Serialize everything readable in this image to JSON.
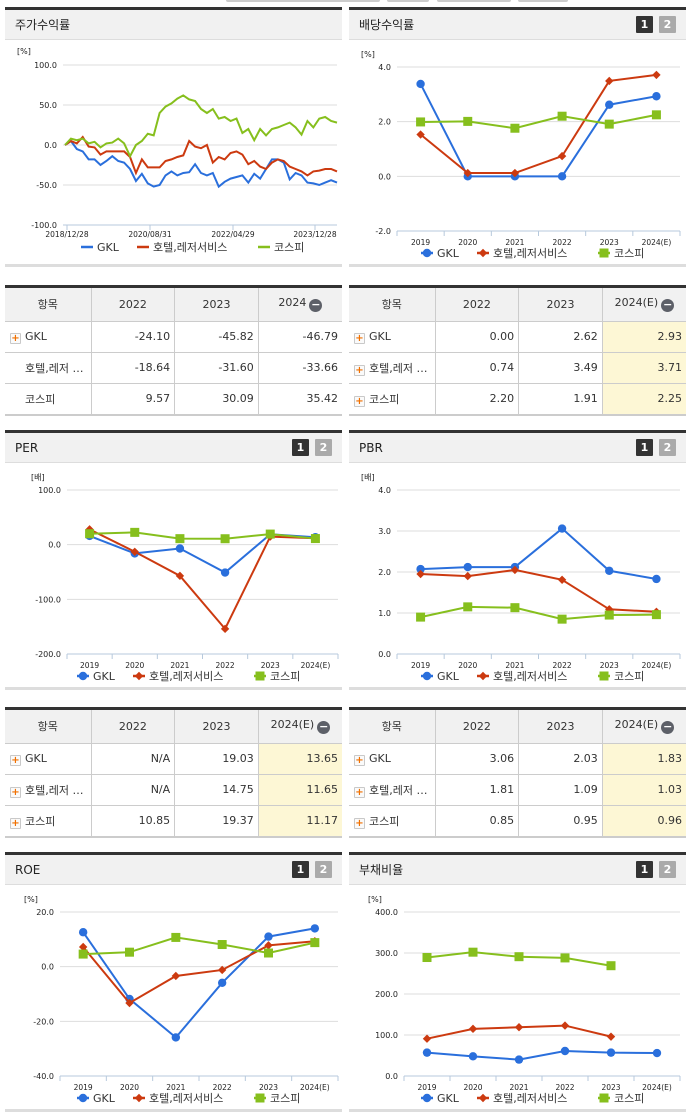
{
  "colors": {
    "gkl": "#2a6fdc",
    "industry": "#cc3a10",
    "kospi": "#86bf1d",
    "grid": "#dddddd",
    "estimate_bg": "#fdf7d5"
  },
  "legend": {
    "gkl": "GKL",
    "industry": "호텔,레저서비스",
    "kospi": "코스피"
  },
  "pager": {
    "p1": "1",
    "p2": "2"
  },
  "panels": {
    "stock_return": {
      "title": "주가수익률",
      "unit": "[%]"
    },
    "dividend": {
      "title": "배당수익률",
      "unit": "[%]"
    },
    "per": {
      "title": "PER",
      "unit": "[배]"
    },
    "pbr": {
      "title": "PBR",
      "unit": "[배]"
    },
    "roe": {
      "title": "ROE",
      "unit": "[%]"
    },
    "debt": {
      "title": "부채비율",
      "unit": "[%]"
    }
  },
  "tables": {
    "stock_return": {
      "headers": [
        "항목",
        "2022",
        "2023",
        "2024"
      ],
      "rows": [
        {
          "name": "GKL",
          "values": [
            "-24.10",
            "-45.82",
            "-46.79"
          ]
        },
        {
          "name": "호텔,레저 …",
          "values": [
            "-18.64",
            "-31.60",
            "-33.66"
          ]
        },
        {
          "name": "코스피",
          "values": [
            "9.57",
            "30.09",
            "35.42"
          ]
        }
      ]
    },
    "dividend": {
      "headers": [
        "항목",
        "2022",
        "2023",
        "2024(E)"
      ],
      "rows": [
        {
          "name": "GKL",
          "values": [
            "0.00",
            "2.62",
            "2.93"
          ]
        },
        {
          "name": "호텔,레저 …",
          "values": [
            "0.74",
            "3.49",
            "3.71"
          ]
        },
        {
          "name": "코스피",
          "values": [
            "2.20",
            "1.91",
            "2.25"
          ]
        }
      ]
    },
    "per": {
      "headers": [
        "항목",
        "2022",
        "2023",
        "2024(E)"
      ],
      "rows": [
        {
          "name": "GKL",
          "values": [
            "N/A",
            "19.03",
            "13.65"
          ]
        },
        {
          "name": "호텔,레저 …",
          "values": [
            "N/A",
            "14.75",
            "11.65"
          ]
        },
        {
          "name": "코스피",
          "values": [
            "10.85",
            "19.37",
            "11.17"
          ]
        }
      ]
    },
    "pbr": {
      "headers": [
        "항목",
        "2022",
        "2023",
        "2024(E)"
      ],
      "rows": [
        {
          "name": "GKL",
          "values": [
            "3.06",
            "2.03",
            "1.83"
          ]
        },
        {
          "name": "호텔,레저 …",
          "values": [
            "1.81",
            "1.09",
            "1.03"
          ]
        },
        {
          "name": "코스피",
          "values": [
            "0.85",
            "0.95",
            "0.96"
          ]
        }
      ]
    }
  },
  "chart_data": [
    {
      "id": "stock_return",
      "type": "line",
      "title": "주가수익률",
      "ylabel": "[%]",
      "ylim": [
        -100,
        100
      ],
      "yticks": [
        "100.0",
        "50.0",
        "0.0",
        "-50.0",
        "-100.0"
      ],
      "x_tick_labels": [
        "2018/12/28",
        "2020/08/31",
        "2022/04/29",
        "2023/12/28"
      ],
      "grid": true,
      "legend_position": "bottom",
      "series": [
        {
          "name": "GKL",
          "values": [
            0,
            5,
            -5,
            -8,
            -18,
            -18,
            -25,
            -20,
            -14,
            -20,
            -22,
            -30,
            -45,
            -36,
            -48,
            -52,
            -50,
            -38,
            -33,
            -38,
            -35,
            -34,
            -24,
            -35,
            -38,
            -35,
            -52,
            -46,
            -42,
            -40,
            -38,
            -47,
            -36,
            -42,
            -30,
            -18,
            -18,
            -22,
            -43,
            -35,
            -38,
            -47,
            -48,
            -50,
            -47,
            -44,
            -47
          ]
        },
        {
          "name": "호텔,레저서비스",
          "values": [
            0,
            5,
            2,
            10,
            -2,
            -3,
            -12,
            -8,
            -8,
            -8,
            -8,
            -15,
            -35,
            -18,
            -28,
            -28,
            -28,
            -20,
            -18,
            -15,
            -13,
            5,
            -2,
            -4,
            0,
            -22,
            -15,
            -18,
            -10,
            -8,
            -12,
            -24,
            -20,
            -27,
            -30,
            -22,
            -18,
            -20,
            -27,
            -30,
            -33,
            -38,
            -33,
            -32,
            -30,
            -30,
            -33
          ]
        },
        {
          "name": "코스피",
          "values": [
            0,
            8,
            6,
            8,
            2,
            4,
            -3,
            2,
            3,
            8,
            2,
            -14,
            0,
            5,
            14,
            12,
            40,
            48,
            52,
            58,
            62,
            57,
            55,
            45,
            40,
            45,
            33,
            35,
            30,
            33,
            15,
            20,
            6,
            20,
            12,
            20,
            22,
            25,
            28,
            22,
            13,
            30,
            22,
            33,
            35,
            30,
            28
          ]
        }
      ]
    },
    {
      "id": "dividend",
      "type": "line",
      "title": "배당수익률",
      "ylabel": "[%]",
      "ylim": [
        -2,
        4
      ],
      "yticks": [
        "4.0",
        "2.0",
        "0.0",
        "-2.0"
      ],
      "categories": [
        "2019",
        "2020",
        "2021",
        "2022",
        "2023",
        "2024(E)"
      ],
      "series": [
        {
          "name": "GKL",
          "values": [
            3.38,
            0.0,
            0.0,
            0.0,
            2.62,
            2.93
          ]
        },
        {
          "name": "호텔,레저서비스",
          "values": [
            1.53,
            0.12,
            0.12,
            0.74,
            3.49,
            3.71
          ]
        },
        {
          "name": "코스피",
          "values": [
            1.99,
            2.01,
            1.76,
            2.2,
            1.91,
            2.25
          ]
        }
      ]
    },
    {
      "id": "per",
      "type": "line",
      "title": "PER",
      "ylabel": "[배]",
      "ylim": [
        -200,
        100
      ],
      "yticks": [
        "100.0",
        "0.0",
        "-100.0",
        "-200.0"
      ],
      "categories": [
        "2019",
        "2020",
        "2021",
        "2022",
        "2023",
        "2024(E)"
      ],
      "series": [
        {
          "name": "GKL",
          "values": [
            16,
            -16,
            -7,
            -51,
            19.03,
            13.65
          ]
        },
        {
          "name": "호텔,레저서비스",
          "values": [
            28,
            -13,
            -57,
            -154,
            14.75,
            11.65
          ]
        },
        {
          "name": "코스피",
          "values": [
            20,
            22.5,
            11,
            10.85,
            19.37,
            11.17
          ]
        }
      ]
    },
    {
      "id": "pbr",
      "type": "line",
      "title": "PBR",
      "ylabel": "[배]",
      "ylim": [
        0,
        4
      ],
      "yticks": [
        "4.0",
        "3.0",
        "2.0",
        "1.0",
        "0.0"
      ],
      "categories": [
        "2019",
        "2020",
        "2021",
        "2022",
        "2023",
        "2024(E)"
      ],
      "series": [
        {
          "name": "GKL",
          "values": [
            2.07,
            2.12,
            2.12,
            3.06,
            2.03,
            1.83
          ]
        },
        {
          "name": "호텔,레저서비스",
          "values": [
            1.95,
            1.9,
            2.05,
            1.81,
            1.09,
            1.03
          ]
        },
        {
          "name": "코스피",
          "values": [
            0.9,
            1.15,
            1.13,
            0.85,
            0.95,
            0.96
          ]
        }
      ]
    },
    {
      "id": "roe",
      "type": "line",
      "title": "ROE",
      "ylabel": "[%]",
      "ylim": [
        -40,
        20
      ],
      "yticks": [
        "20.0",
        "0.0",
        "-20.0",
        "-40.0"
      ],
      "categories": [
        "2019",
        "2020",
        "2021",
        "2022",
        "2023",
        "2024(E)"
      ],
      "series": [
        {
          "name": "GKL",
          "values": [
            12.6,
            -11.8,
            -25.9,
            -5.9,
            11.0,
            14.0
          ]
        },
        {
          "name": "호텔,레저서비스",
          "values": [
            7.2,
            -13.3,
            -3.4,
            -1.2,
            7.8,
            9.3
          ]
        },
        {
          "name": "코스피",
          "values": [
            4.6,
            5.3,
            10.7,
            8.1,
            5.0,
            8.8
          ]
        }
      ]
    },
    {
      "id": "debt",
      "type": "line",
      "title": "부채비율",
      "ylabel": "[%]",
      "ylim": [
        0,
        400
      ],
      "yticks": [
        "400.0",
        "300.0",
        "200.0",
        "100.0",
        "0.0"
      ],
      "categories": [
        "2019",
        "2020",
        "2021",
        "2022",
        "2023",
        "2024(E)"
      ],
      "series": [
        {
          "name": "GKL",
          "values": [
            57,
            48,
            40,
            61,
            57,
            56
          ]
        },
        {
          "name": "호텔,레저서비스",
          "values": [
            91,
            115,
            119,
            123,
            96,
            null
          ]
        },
        {
          "name": "코스피",
          "values": [
            289,
            302,
            291,
            288,
            269,
            null
          ]
        }
      ]
    }
  ]
}
